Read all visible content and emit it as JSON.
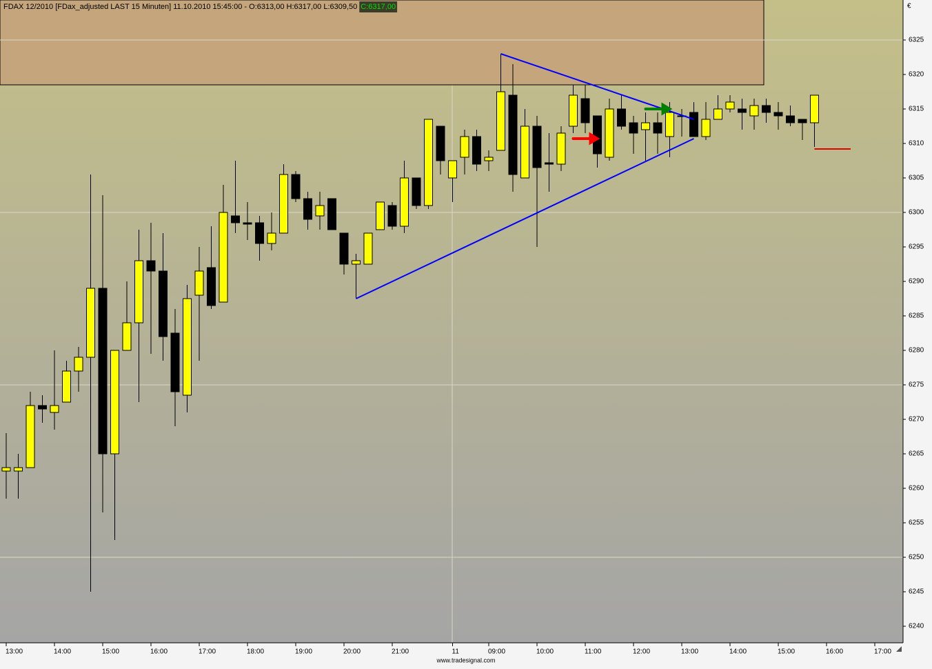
{
  "chart_data": {
    "type": "candlestick",
    "title": "FDAX 12/2010 [FDax_adjusted LAST 15 Minuten] 11.10.2010 15:45:00 - O:6313,00 H:6317,00 L:6309,50",
    "title_close": "C:6317,00",
    "y_axis_label": "€",
    "source": "www.tradesignal.com",
    "categories": [
      "13:00",
      null,
      null,
      null,
      "14:00",
      null,
      null,
      null,
      "15:00",
      null,
      null,
      null,
      "16:00",
      null,
      null,
      null,
      "17:00",
      null,
      null,
      null,
      "18:00",
      null,
      null,
      null,
      "19:00",
      null,
      null,
      null,
      "20:00",
      null,
      null,
      null,
      "21:00",
      null,
      null,
      null,
      null,
      "11",
      null,
      null,
      "09:00",
      null,
      null,
      null,
      "10:00",
      null,
      null,
      null,
      "11:00",
      null,
      null,
      null,
      "12:00",
      null,
      null,
      null,
      "13:00",
      null,
      null,
      null,
      "14:00",
      null,
      null,
      null,
      "15:00",
      null,
      null,
      null,
      "16:00",
      null,
      null,
      null,
      "17:00",
      null
    ],
    "open": [
      6262.5,
      6262.5,
      6263,
      6272,
      6271,
      6272.5,
      6277,
      6279,
      6289,
      6265,
      6280,
      6284,
      6293,
      6291.5,
      6282.5,
      6273.5,
      6288,
      6292,
      6287,
      6299.5,
      6298.5,
      6298.5,
      6295.5,
      6297,
      6305.5,
      6302,
      6299.5,
      6302,
      6297,
      6292.5,
      6292.5,
      6297.5,
      6301,
      6298,
      6305,
      6301,
      6312.5,
      6305,
      6308,
      6311,
      6307.5,
      6309,
      6317,
      6305,
      6312.5,
      6307.2,
      6307,
      6312.5,
      6316.5,
      6314,
      6308,
      6315,
      6313,
      6312,
      6313,
      6311,
      6314,
      6314.5,
      6311,
      6313.5,
      6315,
      6315,
      6314,
      6315.5,
      6314.5,
      6314,
      6313.5,
      6313,
      null,
      null,
      null,
      null,
      null,
      null
    ],
    "high": [
      6268,
      6265,
      6274,
      6273.5,
      6280,
      6278.5,
      6280.5,
      6305.5,
      6302.5,
      6280,
      6290,
      6297.5,
      6298.5,
      6297,
      6286,
      6289.5,
      6295,
      6298,
      6304,
      6307.5,
      6301.5,
      6299.5,
      6300,
      6307,
      6306,
      6303,
      6303,
      6302,
      6297,
      6294,
      6297,
      6301.5,
      6301.5,
      6307.5,
      6305,
      6313.5,
      6312.5,
      6307.5,
      6312,
      6312,
      6309,
      6323,
      6321.5,
      6315,
      6314,
      6311.5,
      6312.5,
      6318.5,
      6318.5,
      6314,
      6316.5,
      6317,
      6314,
      6314.5,
      6314.5,
      6316,
      6315,
      6316,
      6316,
      6317,
      6317,
      6316.5,
      6316.5,
      6316.5,
      6316,
      6315.5,
      6313.5,
      6317,
      null,
      null,
      null,
      null,
      null,
      null
    ],
    "low": [
      6258.5,
      6258.5,
      6263,
      6269.5,
      6268.5,
      6272.5,
      6274,
      6245,
      6256.5,
      6252.5,
      6280,
      6272.5,
      6279.5,
      6278.5,
      6269,
      6271,
      6278.5,
      6286,
      6287,
      6297,
      6296,
      6293,
      6294.5,
      6297,
      6301.5,
      6297.5,
      6297.5,
      6297.5,
      6291,
      6287.5,
      6292.5,
      6297.5,
      6297.5,
      6297,
      6300.5,
      6300.5,
      6305.5,
      6301.5,
      6305.5,
      6306,
      6306,
      6309,
      6303,
      6305,
      6295,
      6303,
      6306,
      6311.5,
      6311.5,
      6306.5,
      6307.5,
      6312,
      6308.5,
      6307.5,
      6308.5,
      6308,
      6311,
      6311,
      6310.5,
      6313.5,
      6314.5,
      6312,
      6312,
      6313,
      6312,
      6312.5,
      6310.5,
      6309.5,
      null,
      null,
      null,
      null,
      null,
      null
    ],
    "close": [
      6263,
      6263,
      6272,
      6271.5,
      6272,
      6277,
      6279,
      6289,
      6265,
      6280,
      6284,
      6293,
      6291.5,
      6282,
      6274,
      6287.5,
      6291.5,
      6286.5,
      6300,
      6298.5,
      6298.3,
      6295.5,
      6297,
      6305.5,
      6302,
      6299,
      6301,
      6297.5,
      6292.5,
      6293,
      6297,
      6301.5,
      6298,
      6305,
      6301,
      6313.5,
      6307.5,
      6307.5,
      6311,
      6307,
      6308,
      6317.5,
      6305.5,
      6312.5,
      6306.5,
      6307,
      6311.5,
      6317,
      6313,
      6308.5,
      6315,
      6312.5,
      6311.5,
      6313,
      6311.5,
      6314.5,
      6314,
      6311,
      6313.5,
      6315,
      6316,
      6314.5,
      6315.5,
      6314.5,
      6314,
      6313,
      6313,
      6317,
      null,
      null,
      null,
      null,
      null,
      null
    ],
    "up_color": "#ffff00",
    "down_color": "#000000",
    "ylim": [
      6237.6,
      6330.8
    ],
    "yticks": [
      6240,
      6245,
      6250,
      6255,
      6260,
      6265,
      6270,
      6275,
      6280,
      6285,
      6290,
      6295,
      6300,
      6305,
      6310,
      6315,
      6320,
      6325
    ],
    "ygrid": [
      6250,
      6275,
      6300,
      6325
    ],
    "zone": {
      "ylim": [
        6318.5,
        6330.8
      ],
      "x_end": 62.8,
      "color": "#c4a57c"
    },
    "trendlines": [
      {
        "color": "#0000ff",
        "x": [
          41,
          57
        ],
        "y": [
          6323,
          6313.5
        ]
      },
      {
        "color": "#0000ff",
        "x": [
          29,
          57
        ],
        "y": [
          6287.5,
          6310.7
        ]
      }
    ],
    "arrows": [
      {
        "color": "#ff0000",
        "x": [
          47,
          49
        ],
        "y": 6310.7
      },
      {
        "color": "#008000",
        "x": [
          53,
          55
        ],
        "y": 6315
      }
    ],
    "price_line": {
      "color": "#e00000",
      "x": [
        67,
        70
      ],
      "value": 6309.2
    }
  }
}
